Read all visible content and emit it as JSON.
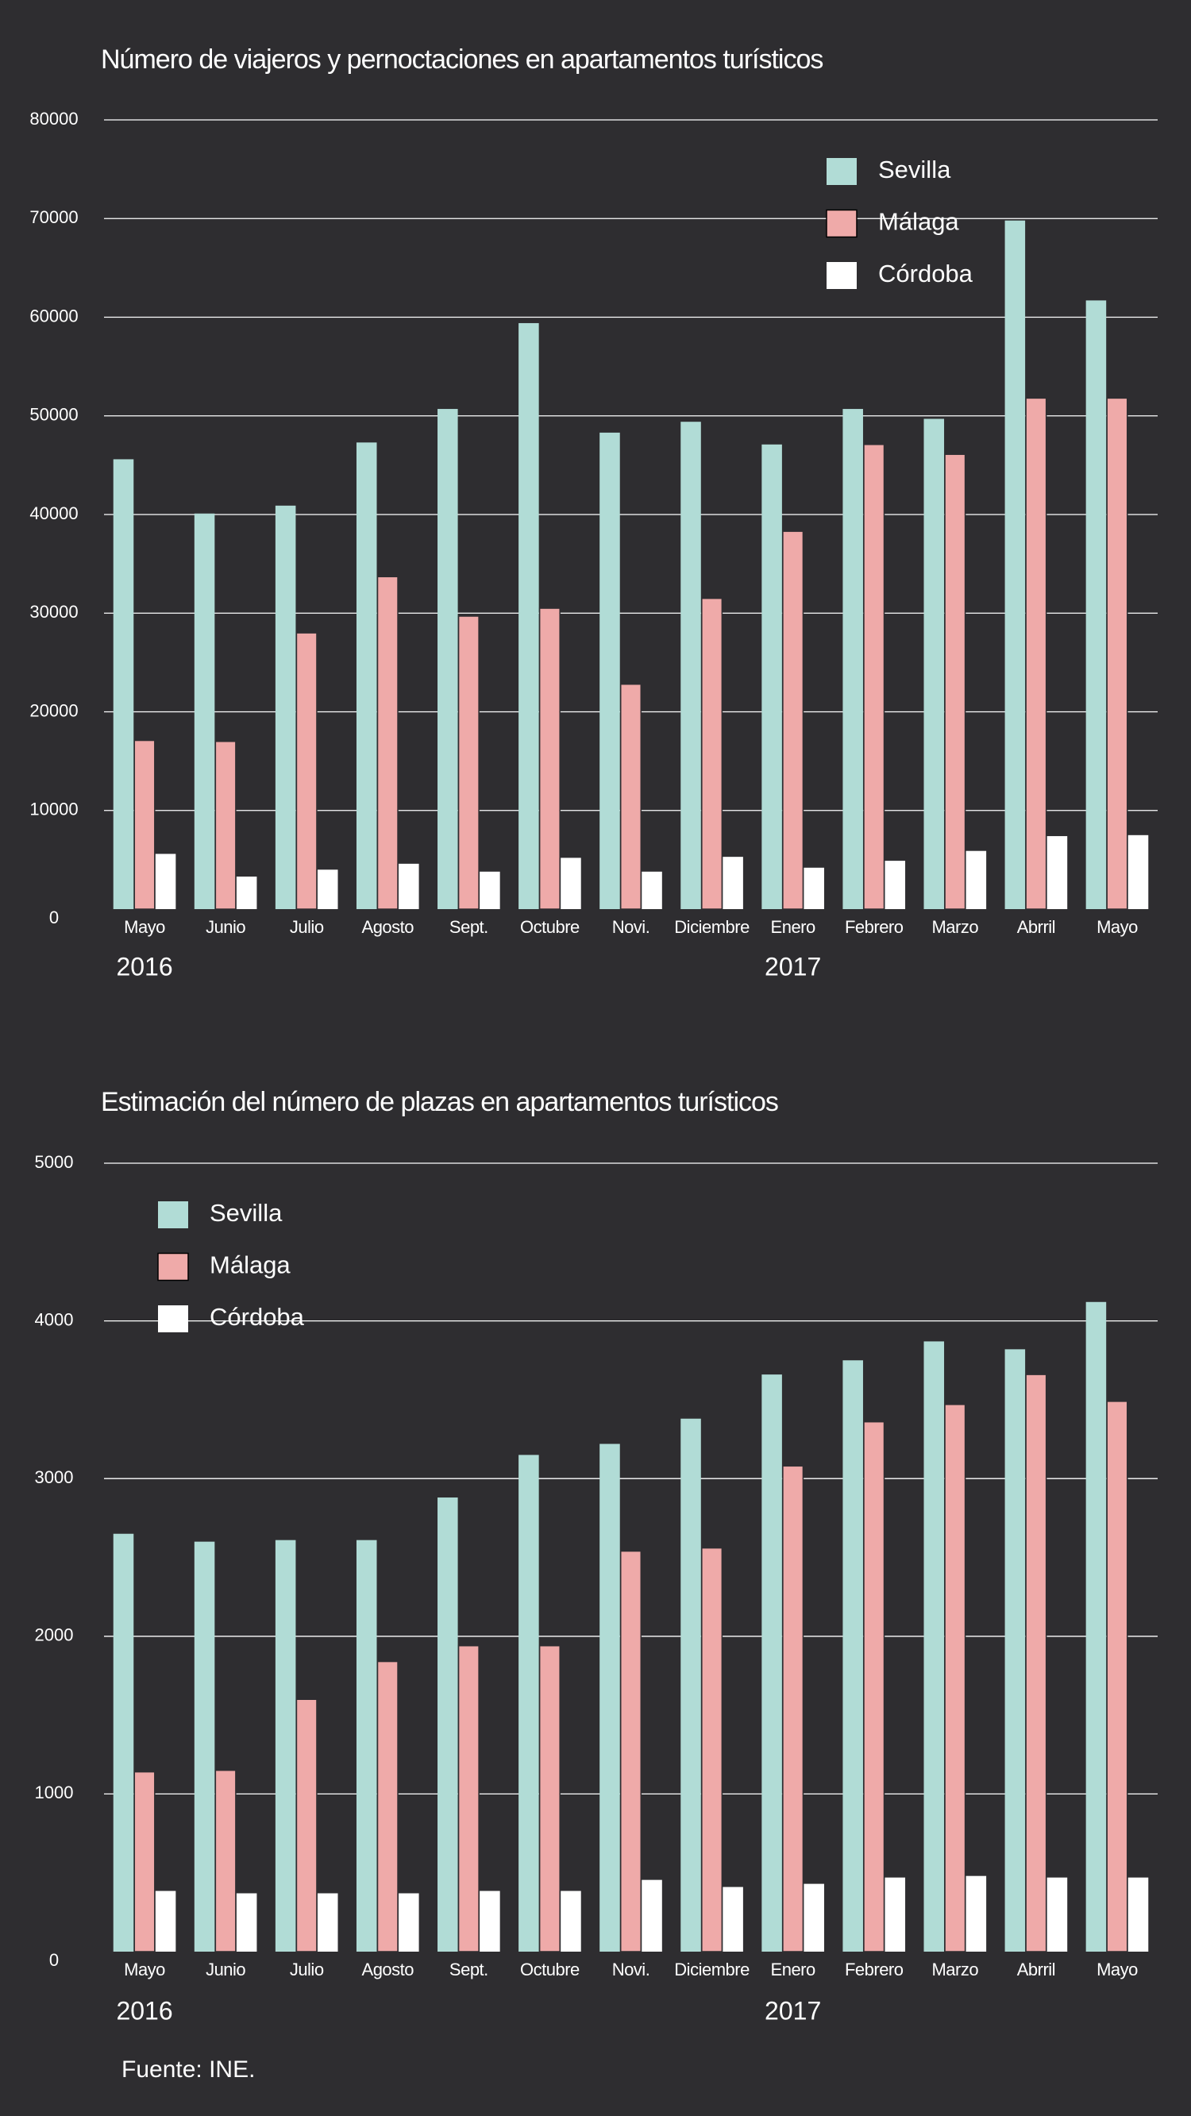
{
  "chart_data": [
    {
      "type": "bar",
      "title": "Número de viajeros y pernoctaciones en apartamentos turísticos",
      "categories": [
        "Mayo",
        "Junio",
        "Julio",
        "Agosto",
        "Sept.",
        "Octubre",
        "Novi.",
        "Diciembre",
        "Enero",
        "Febrero",
        "Marzo",
        "Abrril",
        "Mayo"
      ],
      "category_groups": [
        {
          "label": "2016",
          "first": 0
        },
        {
          "label": "2017",
          "first": 8
        }
      ],
      "series": [
        {
          "name": "Sevilla",
          "color": "#b1dcd6",
          "values": [
            45600,
            40100,
            40900,
            47300,
            50700,
            59400,
            48300,
            49400,
            47100,
            50700,
            49700,
            69800,
            61700
          ]
        },
        {
          "name": "Málaga",
          "color": "#efaaa9",
          "values": [
            17100,
            17000,
            28000,
            33700,
            29700,
            30500,
            22800,
            31500,
            38300,
            47100,
            46100,
            51800,
            51800
          ]
        },
        {
          "name": "Córdoba",
          "color": "#ffffff",
          "values": [
            5600,
            3300,
            4000,
            4600,
            3800,
            5200,
            3800,
            5300,
            4200,
            4900,
            5900,
            7400,
            7500
          ]
        }
      ],
      "ylim": [
        0,
        80000
      ],
      "yticks": [
        0,
        10000,
        20000,
        30000,
        40000,
        50000,
        60000,
        70000,
        80000
      ],
      "grid": true,
      "legend": "top-right"
    },
    {
      "type": "bar",
      "title": "Estimación del número de plazas en apartamentos turísticos",
      "categories": [
        "Mayo",
        "Junio",
        "Julio",
        "Agosto",
        "Sept.",
        "Octubre",
        "Novi.",
        "Diciembre",
        "Enero",
        "Febrero",
        "Marzo",
        "Abrril",
        "Mayo"
      ],
      "category_groups": [
        {
          "label": "2016",
          "first": 0
        },
        {
          "label": "2017",
          "first": 8
        }
      ],
      "series": [
        {
          "name": "Sevilla",
          "color": "#b1dcd6",
          "values": [
            2650,
            2600,
            2610,
            2610,
            2880,
            3150,
            3220,
            3380,
            3660,
            3750,
            3870,
            3820,
            4120
          ]
        },
        {
          "name": "Málaga",
          "color": "#efaaa9",
          "values": [
            1140,
            1150,
            1600,
            1840,
            1940,
            1940,
            2540,
            2560,
            3080,
            3360,
            3470,
            3660,
            3490
          ]
        },
        {
          "name": "Córdoba",
          "color": "#ffffff",
          "values": [
            385,
            370,
            370,
            370,
            385,
            385,
            455,
            410,
            430,
            470,
            480,
            470,
            470
          ]
        }
      ],
      "ylim": [
        0,
        5000
      ],
      "yticks": [
        0,
        1000,
        2000,
        3000,
        4000,
        5000
      ],
      "grid": true,
      "legend": "top-left"
    }
  ],
  "source": "Fuente: INE."
}
